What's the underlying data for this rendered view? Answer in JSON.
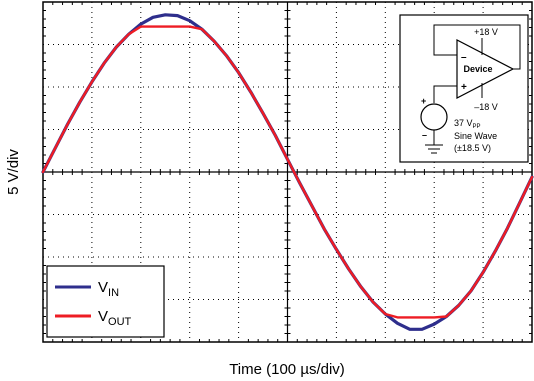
{
  "chart_data": {
    "type": "line",
    "title": "",
    "xlabel": "Time (100 µs/div)",
    "ylabel": "5 V/div",
    "x_divisions": 10,
    "y_divisions": 8,
    "x_per_div_us": 100,
    "y_per_div_V": 5,
    "xlim": [
      0,
      1000
    ],
    "ylim": [
      -20,
      20
    ],
    "grid": true,
    "legend_position": "bottom-left",
    "x": [
      0,
      25,
      50,
      75,
      100,
      125,
      150,
      175,
      200,
      225,
      250,
      275,
      300,
      325,
      350,
      375,
      400,
      425,
      450,
      475,
      500,
      525,
      550,
      575,
      600,
      625,
      650,
      675,
      700,
      725,
      750,
      775,
      800,
      825,
      850,
      875,
      900,
      925,
      950,
      975,
      1000
    ],
    "series": [
      {
        "name": "V_IN",
        "label_main": "V",
        "label_sub": "IN",
        "color": "#2e2e8c",
        "values": [
          0.0,
          2.8,
          5.6,
          8.2,
          10.6,
          12.8,
          14.7,
          16.2,
          17.4,
          18.2,
          18.5,
          18.4,
          17.8,
          16.8,
          15.4,
          13.7,
          11.7,
          9.4,
          6.9,
          4.3,
          1.5,
          -1.3,
          -4.0,
          -6.7,
          -9.1,
          -11.4,
          -13.5,
          -15.3,
          -16.7,
          -17.8,
          -18.5,
          -18.5,
          -17.9,
          -17.0,
          -15.7,
          -14.0,
          -11.8,
          -9.3,
          -6.6,
          -3.6,
          -0.6
        ]
      },
      {
        "name": "V_OUT",
        "label_main": "V",
        "label_sub": "OUT",
        "color": "#ee1c24",
        "values": [
          0.0,
          2.8,
          5.6,
          8.2,
          10.6,
          12.8,
          14.7,
          16.2,
          17.1,
          17.1,
          17.1,
          17.1,
          17.1,
          16.8,
          15.4,
          13.7,
          11.7,
          9.4,
          6.9,
          4.3,
          1.5,
          -1.3,
          -4.0,
          -6.7,
          -9.1,
          -11.4,
          -13.5,
          -15.3,
          -16.7,
          -17.1,
          -17.1,
          -17.1,
          -17.1,
          -17.0,
          -15.7,
          -14.0,
          -11.8,
          -9.3,
          -6.6,
          -3.6,
          -0.6
        ]
      }
    ],
    "inset": {
      "device_label": "Device",
      "supply_pos": "+18 V",
      "supply_neg": "–18 V",
      "input_minus": "–",
      "input_plus": "+",
      "source_plus": "+",
      "source_minus": "–",
      "source_line1_main": "37 V",
      "source_line1_sub": "PP",
      "source_line2": "Sine Wave",
      "source_line3": "(±18.5 V)"
    }
  }
}
